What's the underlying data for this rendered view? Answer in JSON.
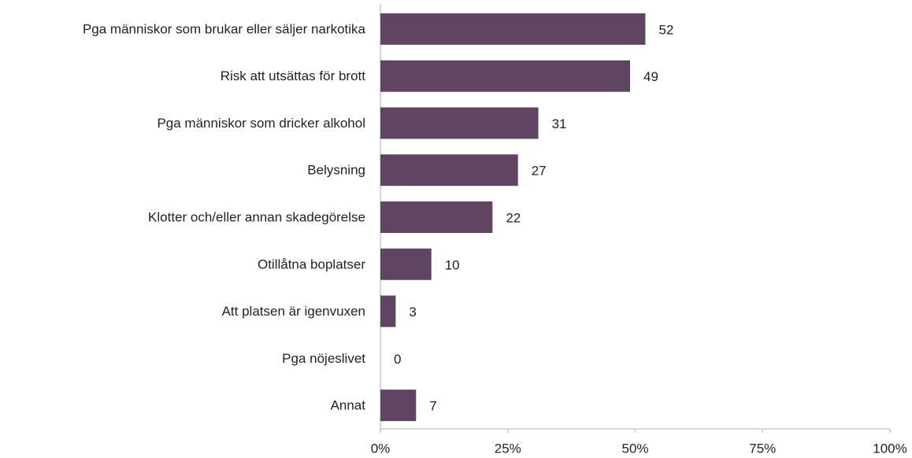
{
  "chart_data": {
    "type": "bar",
    "categories": [
      "Pga människor som brukar eller säljer narkotika",
      "Risk att utsättas för brott",
      "Pga människor som dricker alkohol",
      "Belysning",
      "Klotter och/eller annan skadegörelse",
      "Otillåtna boplatser",
      "Att platsen är igenvuxen",
      "Pga nöjeslivet",
      "Annat"
    ],
    "values": [
      52,
      49,
      31,
      27,
      22,
      10,
      3,
      0,
      7
    ],
    "color": "#5f4562",
    "xlim": [
      0,
      100
    ],
    "xticks": [
      {
        "value": 0,
        "label": "0%"
      },
      {
        "value": 25,
        "label": "25%"
      },
      {
        "value": 50,
        "label": "50%"
      },
      {
        "value": 75,
        "label": "75%"
      },
      {
        "value": 100,
        "label": "100%"
      }
    ]
  }
}
